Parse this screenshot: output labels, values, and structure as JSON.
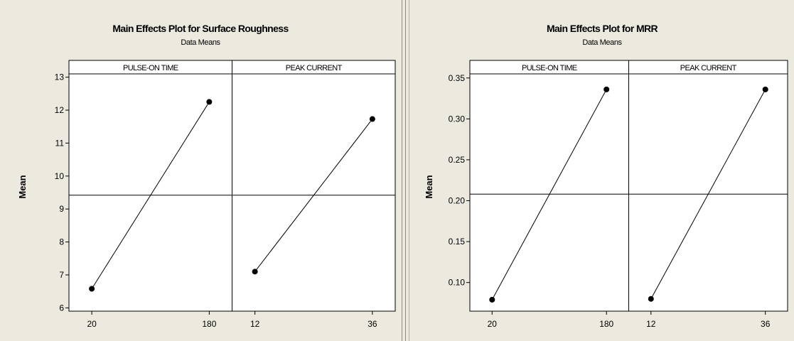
{
  "chart_data": [
    {
      "type": "line",
      "title": "Main Effects Plot for Surface Roughness",
      "subtitle": "Data Means",
      "ylabel": "Mean",
      "ylim": [
        5.9,
        13.1
      ],
      "yticks": [
        6,
        7,
        8,
        9,
        10,
        11,
        12,
        13
      ],
      "reference_line": 9.42,
      "panels": [
        {
          "label": "PULSE-ON TIME",
          "categories": [
            "20",
            "180"
          ],
          "values": [
            6.58,
            12.25
          ]
        },
        {
          "label": "PEAK CURRENT",
          "categories": [
            "12",
            "36"
          ],
          "values": [
            7.1,
            11.73
          ]
        }
      ]
    },
    {
      "type": "line",
      "title": "Main Effects Plot for MRR",
      "subtitle": "Data Means",
      "ylabel": "Mean",
      "ylim": [
        0.065,
        0.355
      ],
      "yticks": [
        "0.10",
        "0.15",
        "0.20",
        "0.25",
        "0.30",
        "0.35"
      ],
      "reference_line": 0.208,
      "panels": [
        {
          "label": "PULSE-ON TIME",
          "categories": [
            "20",
            "180"
          ],
          "values": [
            0.079,
            0.336
          ]
        },
        {
          "label": "PEAK CURRENT",
          "categories": [
            "12",
            "36"
          ],
          "values": [
            0.08,
            0.336
          ]
        }
      ]
    }
  ]
}
